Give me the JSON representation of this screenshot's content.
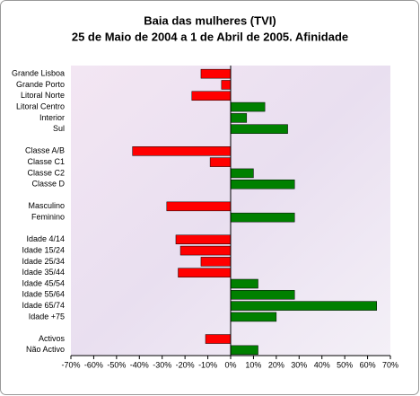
{
  "chart_data": {
    "type": "hbar",
    "title": "Baia das mulheres (TVI)",
    "subtitle": "25 de Maio de 2004 a 1 de Abril de 2005. Afinidade",
    "categories": [
      "Grande Lisboa",
      "Grande Porto",
      "Litoral Norte",
      "Litoral Centro",
      "Interior",
      "Sul",
      null,
      "Classe A/B",
      "Classe C1",
      "Classe C2",
      "Classe D",
      null,
      "Masculino",
      "Feminino",
      null,
      "Idade 4/14",
      "Idade 15/24",
      "Idade 25/34",
      "Idade 35/44",
      "Idade 45/54",
      "Idade 55/64",
      "Idade 65/74",
      "Idade +75",
      null,
      "Activos",
      "Não Activo"
    ],
    "values": [
      -13,
      -4,
      -17,
      15,
      7,
      25,
      null,
      -43,
      -9,
      10,
      28,
      null,
      -28,
      28,
      null,
      -24,
      -22,
      -13,
      -23,
      12,
      28,
      64,
      20,
      null,
      -11,
      12
    ],
    "negative_color": "#ff0000",
    "positive_color": "#008000",
    "xlim": [
      -70,
      70
    ],
    "xticks": [
      {
        "value": -70,
        "label": "-70%"
      },
      {
        "value": -60,
        "label": "-60%"
      },
      {
        "value": -50,
        "label": "-50%"
      },
      {
        "value": -40,
        "label": "-40%"
      },
      {
        "value": -30,
        "label": "-30%"
      },
      {
        "value": -20,
        "label": "-20%"
      },
      {
        "value": -10,
        "label": "-10%"
      },
      {
        "value": 0,
        "label": "0%"
      },
      {
        "value": 10,
        "label": "10%"
      },
      {
        "value": 20,
        "label": "20%"
      },
      {
        "value": 30,
        "label": "30%"
      },
      {
        "value": 40,
        "label": "40%"
      },
      {
        "value": 50,
        "label": "50%"
      },
      {
        "value": 60,
        "label": "60%"
      },
      {
        "value": 70,
        "label": "70%"
      }
    ]
  }
}
